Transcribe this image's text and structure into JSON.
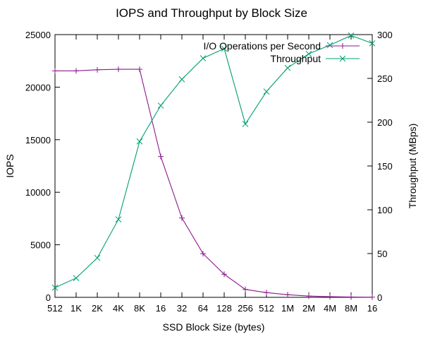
{
  "chart_data": {
    "type": "line",
    "title": "IOPS and Throughput by Block Size",
    "xlabel": "SSD Block Size (bytes)",
    "ylabel": "IOPS",
    "y2label": "Throughput (MBps)",
    "categories": [
      "512",
      "1K",
      "2K",
      "4K",
      "8K",
      "16",
      "32",
      "64",
      "128",
      "256",
      "512",
      "1M",
      "2M",
      "4M",
      "8M",
      "16"
    ],
    "ylim": [
      0,
      25000
    ],
    "y_ticks": [
      0,
      5000,
      10000,
      15000,
      20000,
      25000
    ],
    "y2lim": [
      0,
      300
    ],
    "y2_ticks": [
      0,
      50,
      100,
      150,
      200,
      250,
      300
    ],
    "grid": false,
    "legend_position": "top-right",
    "series": [
      {
        "name": "I/O Operations per Second",
        "axis": "left",
        "color": "#8b1a8b",
        "marker": "plus",
        "values": [
          21550,
          21550,
          21650,
          21700,
          21700,
          13400,
          7550,
          4150,
          2200,
          750,
          450,
          250,
          120,
          60,
          30,
          15
        ]
      },
      {
        "name": "Throughput",
        "axis": "right",
        "color": "#009e73",
        "marker": "cross",
        "values": [
          11,
          22,
          45,
          89,
          178,
          219,
          249,
          273,
          284,
          198,
          235,
          262,
          278,
          288,
          299,
          290
        ]
      }
    ]
  }
}
